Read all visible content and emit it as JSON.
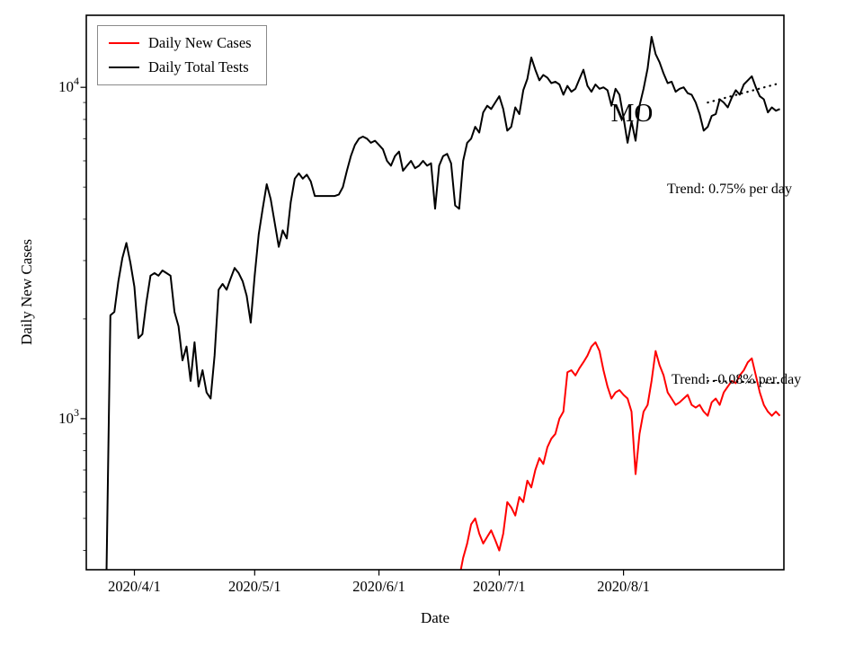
{
  "figure": {
    "background": "#ffffff"
  },
  "chart_data": {
    "type": "line",
    "title": "MO",
    "xlabel": "Date",
    "ylabel": "Daily New Cases",
    "yscale": "log",
    "grid": false,
    "ylim": [
      350,
      16500
    ],
    "xlim": [
      "2020-03-20",
      "2020-09-10"
    ],
    "x_ticks": [
      {
        "date": "2020-04-01",
        "label": "2020/4/1"
      },
      {
        "date": "2020-05-01",
        "label": "2020/5/1"
      },
      {
        "date": "2020-06-01",
        "label": "2020/6/1"
      },
      {
        "date": "2020-07-01",
        "label": "2020/7/1"
      },
      {
        "date": "2020-08-01",
        "label": "2020/8/1"
      }
    ],
    "y_ticks": [
      {
        "value": 1000,
        "base": "10",
        "exp": "3"
      },
      {
        "value": 10000,
        "base": "10",
        "exp": "4"
      }
    ],
    "legend": {
      "position": "upper left",
      "items": [
        {
          "label": "Daily New Cases",
          "color": "#ff0000"
        },
        {
          "label": "Daily Total Tests",
          "color": "#000000"
        }
      ]
    },
    "annotations": [
      {
        "text": "Trend: 0.75% per day",
        "series": "Daily Total Tests"
      },
      {
        "text": "Trend: -0.08% per day",
        "series": "Daily New Cases"
      }
    ],
    "series": [
      {
        "name": "Daily Total Tests",
        "color": "#000000",
        "start": "2020-03-25",
        "values": [
          320,
          2050,
          2100,
          2600,
          3050,
          3390,
          2950,
          2500,
          1750,
          1800,
          2250,
          2700,
          2750,
          2700,
          2800,
          2750,
          2700,
          2100,
          1900,
          1500,
          1650,
          1300,
          1700,
          1250,
          1400,
          1200,
          1150,
          1550,
          2450,
          2550,
          2450,
          2650,
          2850,
          2750,
          2600,
          2350,
          1950,
          2700,
          3600,
          4300,
          5100,
          4600,
          3900,
          3300,
          3700,
          3500,
          4500,
          5300,
          5500,
          5300,
          5450,
          5200,
          4700,
          4700,
          4700,
          4700,
          4700,
          4700,
          4750,
          5000,
          5600,
          6200,
          6700,
          7000,
          7100,
          7000,
          6800,
          6900,
          6700,
          6500,
          6000,
          5800,
          6200,
          6400,
          5600,
          5800,
          6000,
          5700,
          5800,
          6000,
          5800,
          5900,
          4300,
          5800,
          6200,
          6300,
          5900,
          4400,
          4300,
          6000,
          6800,
          7000,
          7600,
          7300,
          8400,
          8800,
          8600,
          9000,
          9400,
          8600,
          7400,
          7600,
          8700,
          8300,
          9800,
          10600,
          12300,
          11300,
          10500,
          10900,
          10700,
          10300,
          10400,
          10200,
          9500,
          10100,
          9700,
          9900,
          10600,
          11300,
          10100,
          9700,
          10200,
          9900,
          10000,
          9800,
          8800,
          9900,
          9500,
          8100,
          6800,
          7900,
          6900,
          8800,
          9900,
          11400,
          14200,
          12600,
          11900,
          11000,
          10300,
          10400,
          9700,
          9900,
          10000,
          9600,
          9500,
          9000,
          8300,
          7400,
          7600,
          8200,
          8300,
          9200,
          9000,
          8700,
          9300,
          9800,
          9500,
          10200,
          10500,
          10800,
          10000,
          9400,
          9200,
          8400,
          8700,
          8500,
          8600
        ]
      },
      {
        "name": "Daily New Cases",
        "color": "#ff0000",
        "start": "2020-06-21",
        "values": [
          330,
          380,
          420,
          480,
          500,
          450,
          420,
          440,
          460,
          430,
          400,
          450,
          560,
          540,
          510,
          580,
          560,
          650,
          620,
          700,
          760,
          730,
          820,
          870,
          900,
          1000,
          1050,
          1380,
          1400,
          1350,
          1420,
          1480,
          1550,
          1650,
          1700,
          1600,
          1400,
          1250,
          1150,
          1200,
          1220,
          1180,
          1150,
          1050,
          680,
          900,
          1050,
          1100,
          1300,
          1600,
          1450,
          1350,
          1200,
          1150,
          1100,
          1120,
          1150,
          1180,
          1100,
          1080,
          1100,
          1050,
          1020,
          1120,
          1150,
          1100,
          1200,
          1250,
          1300,
          1280,
          1350,
          1400,
          1480,
          1520,
          1350,
          1200,
          1100,
          1050,
          1020,
          1050,
          1020
        ]
      }
    ],
    "trend_lines": [
      {
        "series": "Daily Total Tests",
        "rate_percent_per_day": 0.75,
        "start": "2020-08-22",
        "end": "2020-09-09",
        "start_value": 9000,
        "style": "dotted",
        "color": "#000000"
      },
      {
        "series": "Daily New Cases",
        "rate_percent_per_day": -0.08,
        "start": "2020-08-22",
        "end": "2020-09-09",
        "start_value": 1300,
        "style": "dotted",
        "color": "#000000"
      }
    ]
  }
}
